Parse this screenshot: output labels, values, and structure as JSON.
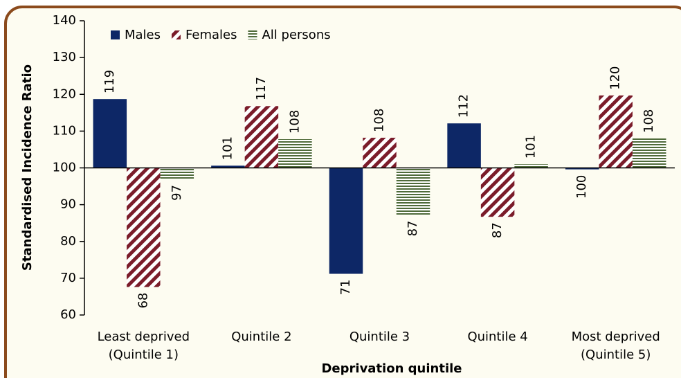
{
  "chart_data": {
    "type": "bar",
    "xlabel": "Deprivation quintile",
    "ylabel": "Standardised Incidence Ratio",
    "categories": [
      "Least deprived (Quintile 1)",
      "Quintile 2",
      "Quintile 3",
      "Quintile 4",
      "Most deprived (Quintile 5)"
    ],
    "series": [
      {
        "name": "Males",
        "color": "#0d2766",
        "pattern": "solid",
        "values": [
          118.7,
          100.6,
          71.2,
          112.1,
          99.6
        ],
        "value_labels": [
          "119",
          "101",
          "71",
          "112",
          "100"
        ]
      },
      {
        "name": "Females",
        "color": "#7b1c2a",
        "pattern": "diagonal",
        "values": [
          67.6,
          116.8,
          108.2,
          86.7,
          119.7
        ],
        "value_labels": [
          "68",
          "117",
          "108",
          "87",
          "120"
        ]
      },
      {
        "name": "All persons",
        "color": "#4f6b3a",
        "pattern": "horizontal",
        "values": [
          96.9,
          107.8,
          87.2,
          101.0,
          108.0
        ],
        "value_labels": [
          "97",
          "108",
          "87",
          "101",
          "108"
        ]
      }
    ],
    "ylim": [
      60,
      140
    ],
    "yticks": [
      60,
      70,
      80,
      90,
      100,
      110,
      120,
      130,
      140
    ],
    "baseline": 100,
    "legend": "top-left",
    "grid": false
  }
}
